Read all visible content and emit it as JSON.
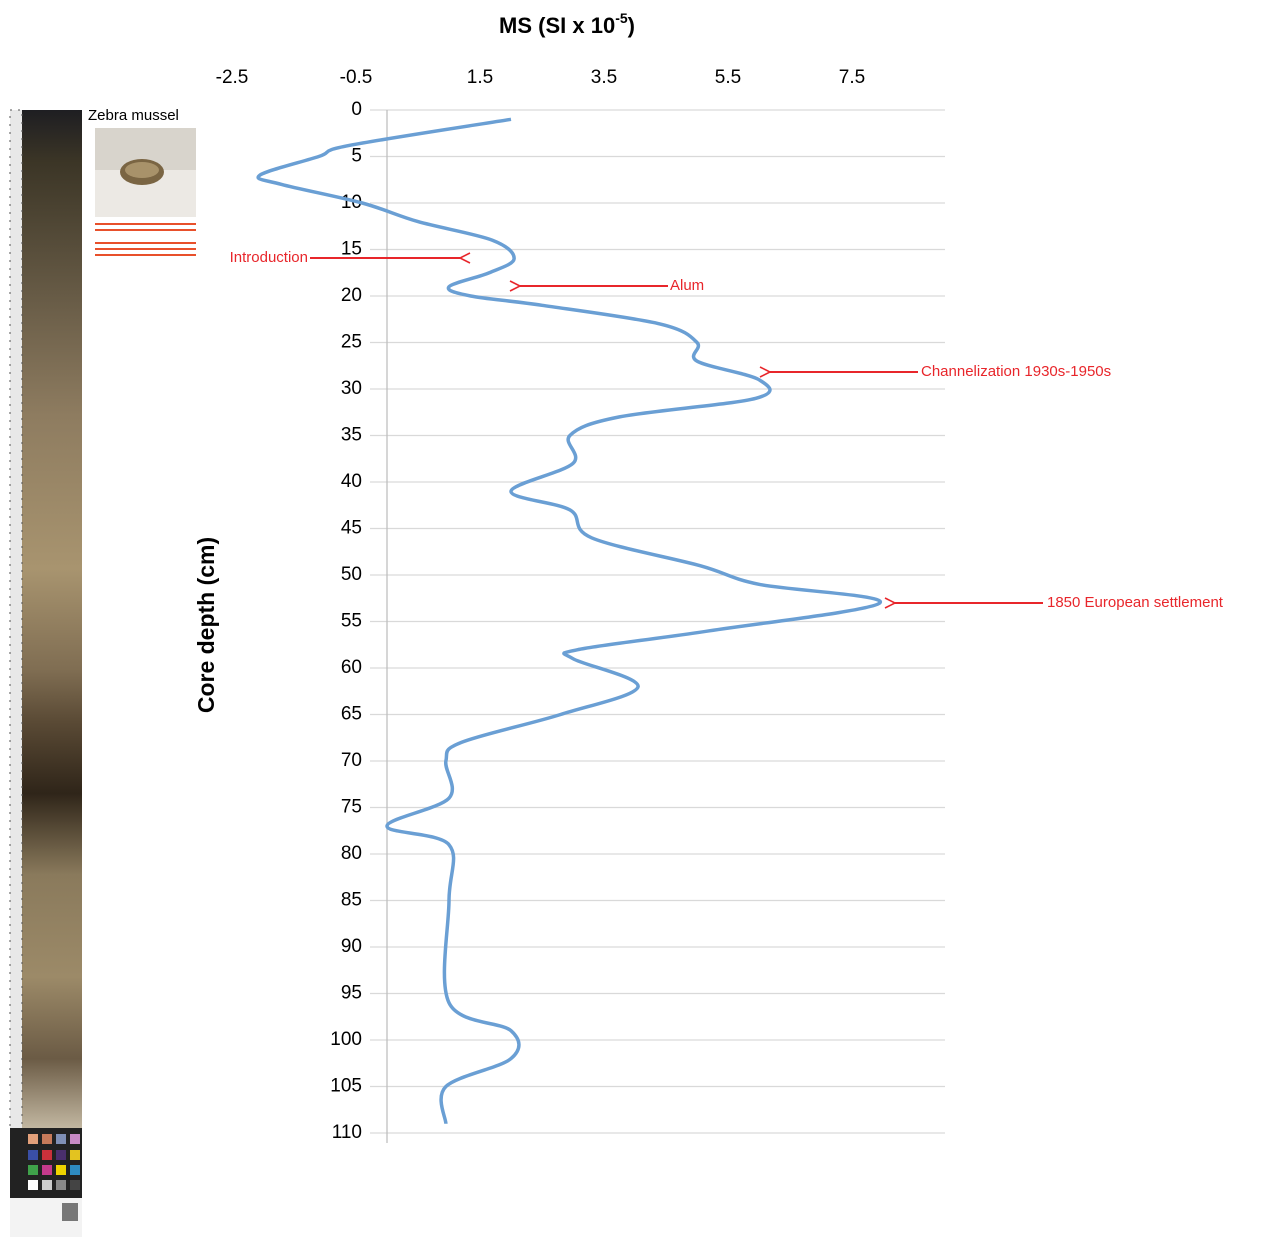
{
  "chart_data": {
    "type": "line",
    "title": "MS (SI x 10",
    "title_exponent": "-5",
    "title_suffix": ")",
    "y_label": "Core depth (cm)",
    "core_label": "Zebra mussel",
    "color": "#6a9fd4",
    "xlim": [
      -2.5,
      9
    ],
    "xticks": [
      -2.5,
      -0.5,
      1.5,
      3.5,
      5.5,
      7.5
    ],
    "ylim": [
      0,
      110
    ],
    "yticks": [
      0,
      5,
      10,
      15,
      20,
      25,
      30,
      35,
      40,
      45,
      50,
      55,
      60,
      65,
      70,
      75,
      80,
      85,
      90,
      95,
      100,
      105,
      110
    ],
    "y_inverted": true,
    "grid": true,
    "y": [
      1,
      3.8,
      5,
      7,
      8,
      10,
      12,
      14,
      16,
      17.5,
      19,
      20,
      21,
      23,
      25,
      27,
      29,
      31,
      33,
      35,
      38,
      41,
      43,
      46,
      49,
      51,
      53,
      56,
      58,
      59,
      62,
      65,
      68,
      70,
      74,
      77,
      79,
      85,
      96,
      99,
      102,
      105,
      109
    ],
    "values": [
      2.0,
      -0.6,
      -1.1,
      -2.05,
      -1.7,
      -0.4,
      0.5,
      1.7,
      2.05,
      1.65,
      1.0,
      1.35,
      2.5,
      4.4,
      5.0,
      5.0,
      6.0,
      5.95,
      3.75,
      2.95,
      3.0,
      2.0,
      2.95,
      3.3,
      5.05,
      6.0,
      7.95,
      5.2,
      3.1,
      3.0,
      4.05,
      2.8,
      1.2,
      0.95,
      1.0,
      0.0,
      1.0,
      1.0,
      1.0,
      2.0,
      2.0,
      0.95,
      0.95
    ],
    "annotations": [
      "Introduction",
      "Alum",
      "Channelization 1930s-1950s",
      "1850 European settlement"
    ]
  }
}
